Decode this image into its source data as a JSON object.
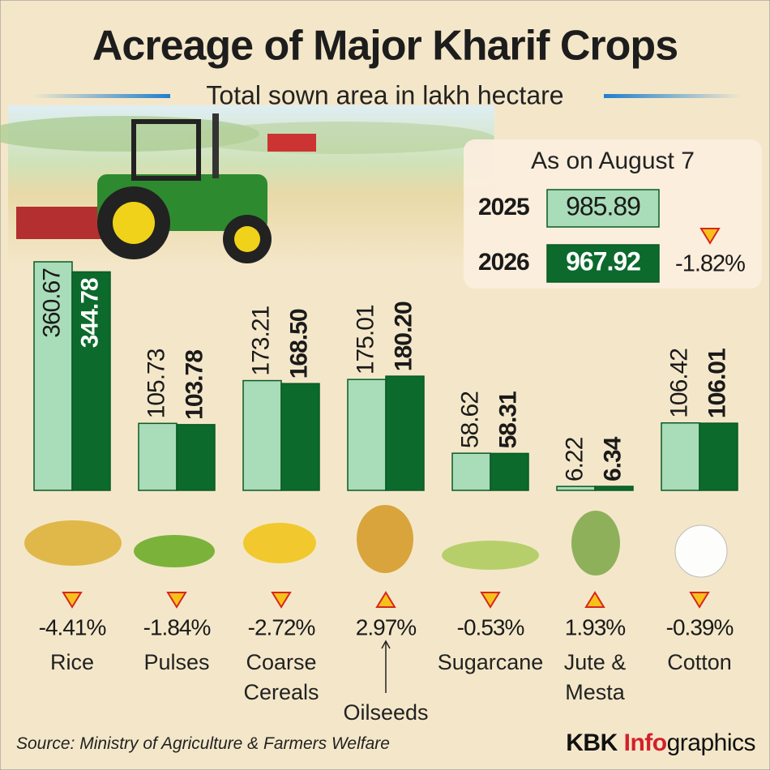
{
  "chart_data": {
    "type": "bar",
    "title": "Acreage of Major Kharif Crops",
    "subtitle": "Total sown area in lakh hectare",
    "categories": [
      "Rice",
      "Pulses",
      "Coarse Cereals",
      "Oilseeds",
      "Sugarcane",
      "Jute & Mesta",
      "Cotton"
    ],
    "series": [
      {
        "name": "2025",
        "color": "#a9dcb8",
        "values": [
          360.67,
          105.73,
          173.21,
          175.01,
          58.62,
          6.22,
          106.42
        ],
        "value_labels": [
          "360.67",
          "105.73",
          "173.21",
          "175.01",
          "58.62",
          "6.22",
          "106.42"
        ]
      },
      {
        "name": "2026",
        "color": "#0b6a2c",
        "values": [
          344.78,
          103.78,
          168.5,
          180.2,
          58.31,
          6.34,
          106.01
        ],
        "value_labels": [
          "344.78",
          "103.78",
          "168.50",
          "180.20",
          "58.31",
          "6.34",
          "106.01"
        ]
      }
    ],
    "changes": [
      {
        "value": -4.41,
        "label": "-4.41%"
      },
      {
        "value": -1.84,
        "label": "-1.84%"
      },
      {
        "value": -2.72,
        "label": "-2.72%"
      },
      {
        "value": 2.97,
        "label": "2.97%"
      },
      {
        "value": -0.53,
        "label": "-0.53%"
      },
      {
        "value": 1.93,
        "label": "1.93%"
      },
      {
        "value": -0.39,
        "label": "-0.39%"
      }
    ],
    "as_of": "As on August 7",
    "totals": [
      985.89,
      967.92
    ],
    "total_change": {
      "value": -1.82,
      "label": "-1.82%"
    },
    "source": "Source: Ministry of Agriculture & Farmers Welfare",
    "brand": [
      "KBK",
      "Info",
      "graphics"
    ]
  }
}
